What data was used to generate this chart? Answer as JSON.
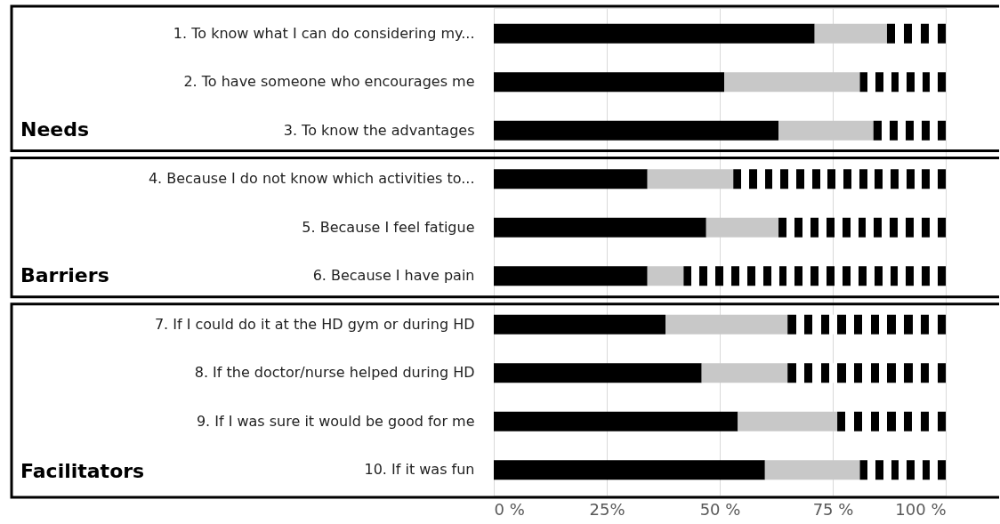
{
  "chart_data": {
    "type": "bar",
    "orientation": "horizontal",
    "stacked": true,
    "categories": [
      "1. To know what I can do considering my...",
      "2. To have  someone who encourages me",
      "3. To know the advantages",
      "4. Because I do not know which activities to...",
      "5. Because I feel fatigue",
      "6. Because I have pain",
      "7. If I could do it at the HD gym or during HD",
      "8. If the doctor/nurse helped during HD",
      "9. If I was sure it would be good for me",
      "10. If it was fun"
    ],
    "series": [
      {
        "color": "#000000",
        "values": [
          71,
          51,
          63,
          34,
          47,
          34,
          38,
          46,
          54,
          60
        ]
      },
      {
        "color": "#c8c8c8",
        "values": [
          16,
          30,
          21,
          19,
          16,
          8,
          27,
          19,
          22,
          21
        ]
      },
      {
        "color": "#000000",
        "values": [
          13,
          19,
          16,
          47,
          37,
          58,
          35,
          35,
          24,
          19
        ]
      }
    ],
    "xlim": [
      0,
      100
    ],
    "xticks": [
      {
        "value": 0,
        "label": "0 %"
      },
      {
        "value": 25,
        "label": "25%"
      },
      {
        "value": 50,
        "label": "50 %"
      },
      {
        "value": 75,
        "label": "75 %"
      },
      {
        "value": 100,
        "label": "100 %"
      }
    ],
    "grid": "x",
    "annotations": [
      "Needs",
      "Barriers",
      "Facilitators"
    ]
  }
}
